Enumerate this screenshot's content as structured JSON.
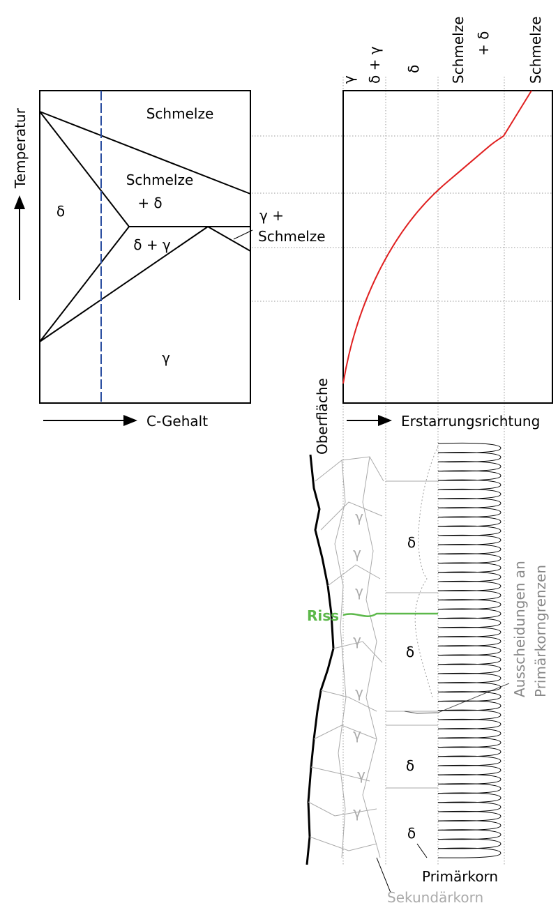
{
  "phase_diagram": {
    "regions": [
      "Schmelze",
      "Schmelze",
      "+ δ",
      "δ",
      "δ + γ",
      "γ +",
      "Schmelze",
      "γ"
    ],
    "y_axis": "Temperatur",
    "x_axis": "C-Gehalt"
  },
  "solidification_chart": {
    "column_labels": [
      "γ",
      "δ + γ",
      "δ",
      "Schmelze",
      "+ δ",
      "Schmelze"
    ],
    "x_axis": "Erstarrungsrichtung",
    "surface": "Oberfläche"
  },
  "microstructure": {
    "gamma_labels": [
      "γ",
      "γ",
      "γ",
      "γ",
      "γ",
      "γ",
      "γ",
      "γ"
    ],
    "delta_labels": [
      "δ",
      "δ",
      "δ",
      "δ"
    ],
    "crack": "Riss",
    "precipitates": [
      "Ausscheidungen an",
      "Primärkorngrenzen"
    ],
    "primary_grain": "Primärkorn",
    "secondary_grain": "Sekundärkorn"
  }
}
